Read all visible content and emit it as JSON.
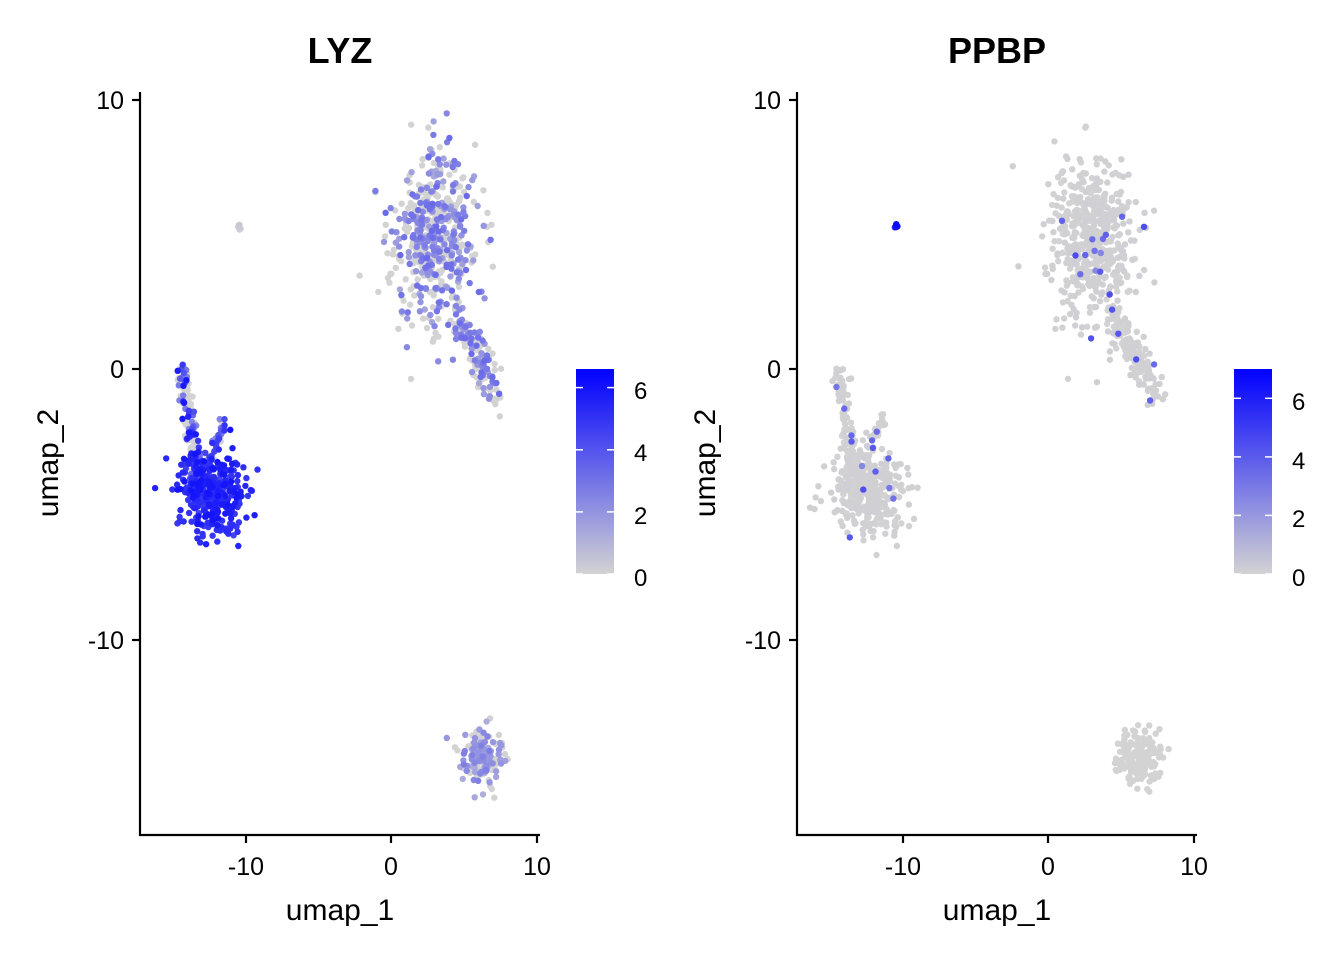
{
  "chart_data": [
    {
      "type": "scatter",
      "title": "LYZ",
      "xlabel": "umap_1",
      "ylabel": "umap_2",
      "xlim": [
        -17.5,
        10.3
      ],
      "ylim": [
        -17.2,
        10.3
      ],
      "xticks": [
        -10,
        0,
        10
      ],
      "xtick_labels": [
        "-10",
        "0",
        "10"
      ],
      "yticks": [
        -10,
        0,
        10
      ],
      "ytick_labels": [
        "-10",
        "0",
        "10"
      ],
      "colorbar": {
        "min": 0,
        "max": 6.6,
        "ticks": [
          0,
          2,
          4,
          6
        ],
        "tick_labels": [
          "0",
          "2",
          "4",
          "6"
        ],
        "low_color": "#d3d3d3",
        "high_color": "#0000ff"
      },
      "clusters": [
        {
          "name": "large-upper-cluster",
          "center": [
            3.0,
            5.0
          ],
          "spread": [
            2.6,
            2.7
          ],
          "level": 2.2
        },
        {
          "name": "upper-tail",
          "from": [
            4.5,
            2.0
          ],
          "to": [
            7.5,
            -1.0
          ],
          "width": 0.9,
          "level": 2.2
        },
        {
          "name": "left-cluster-body",
          "center": [
            -12.5,
            -4.5
          ],
          "spread": [
            2.2,
            1.3
          ],
          "level": 6.0
        },
        {
          "name": "left-cluster-arm",
          "from": [
            -14.6,
            0.0
          ],
          "to": [
            -13.5,
            -4.0
          ],
          "width": 0.7,
          "level": 4.0
        },
        {
          "name": "left-cluster-spur",
          "from": [
            -11.5,
            -1.7
          ],
          "to": [
            -12.6,
            -3.2
          ],
          "width": 0.4,
          "level": 3.5
        },
        {
          "name": "bottom-cluster",
          "center": [
            6.3,
            -14.3
          ],
          "spread": [
            1.4,
            0.9
          ],
          "level": 1.8
        },
        {
          "name": "small-isolated",
          "center": [
            -10.6,
            5.3
          ],
          "spread": [
            0.12,
            0.12
          ],
          "level": 0.5
        }
      ]
    },
    {
      "type": "scatter",
      "title": "PPBP",
      "xlabel": "umap_1",
      "ylabel": "umap_2",
      "xlim": [
        -17.5,
        10.3
      ],
      "ylim": [
        -17.2,
        10.3
      ],
      "xticks": [
        -10,
        0,
        10
      ],
      "xtick_labels": [
        "-10",
        "0",
        "10"
      ],
      "yticks": [
        -10,
        0,
        10
      ],
      "ytick_labels": [
        "-10",
        "0",
        "10"
      ],
      "colorbar": {
        "min": 0,
        "max": 7.0,
        "ticks": [
          0,
          2,
          4,
          6
        ],
        "tick_labels": [
          "0",
          "2",
          "4",
          "6"
        ],
        "low_color": "#d3d3d3",
        "high_color": "#0000ff"
      },
      "clusters": [
        {
          "name": "large-upper-cluster",
          "center": [
            3.0,
            5.0
          ],
          "spread": [
            2.6,
            2.7
          ],
          "level": 0.15
        },
        {
          "name": "upper-tail",
          "from": [
            4.5,
            2.0
          ],
          "to": [
            7.5,
            -1.0
          ],
          "width": 0.9,
          "level": 0.15
        },
        {
          "name": "left-cluster-body",
          "center": [
            -12.5,
            -4.5
          ],
          "spread": [
            2.2,
            1.3
          ],
          "level": 0.15
        },
        {
          "name": "left-cluster-arm",
          "from": [
            -14.6,
            0.0
          ],
          "to": [
            -13.5,
            -4.0
          ],
          "width": 0.7,
          "level": 0.1
        },
        {
          "name": "left-cluster-spur",
          "from": [
            -11.5,
            -1.7
          ],
          "to": [
            -12.6,
            -3.2
          ],
          "width": 0.4,
          "level": 0.1
        },
        {
          "name": "bottom-cluster",
          "center": [
            6.3,
            -14.3
          ],
          "spread": [
            1.4,
            0.9
          ],
          "level": 0.0
        },
        {
          "name": "small-isolated",
          "center": [
            -10.6,
            5.3
          ],
          "spread": [
            0.12,
            0.12
          ],
          "level": 6.8
        }
      ]
    }
  ]
}
